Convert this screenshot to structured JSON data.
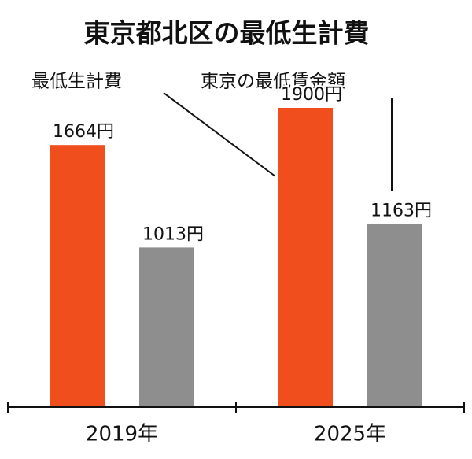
{
  "chart_data": {
    "type": "bar",
    "title": "東京都北区の最低生計費",
    "categories": [
      "2019年",
      "2025年"
    ],
    "series": [
      {
        "name": "最低生計費",
        "color": "#f04e1c",
        "values": [
          1664,
          1900
        ],
        "value_labels": [
          "1664円",
          "1900円"
        ]
      },
      {
        "name": "東京の最低賃金額",
        "color": "#8e8e8e",
        "values": [
          1013,
          1163
        ],
        "value_labels": [
          "1013円",
          "1163円"
        ]
      }
    ]
  }
}
